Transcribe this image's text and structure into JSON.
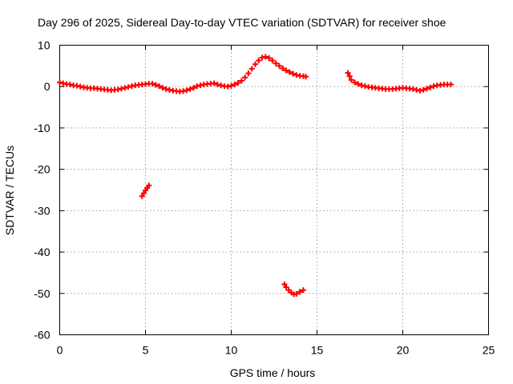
{
  "chart_data": {
    "type": "scatter",
    "title": "Day 296 of 2025, Sidereal Day-to-day VTEC variation (SDTVAR) for receiver shoe",
    "xlabel": "GPS time / hours",
    "ylabel": "SDTVAR / TECUs",
    "xlim": [
      0,
      25
    ],
    "ylim": [
      -60,
      10
    ],
    "xticks": [
      0,
      5,
      10,
      15,
      20,
      25
    ],
    "yticks": [
      10,
      0,
      -10,
      -20,
      -30,
      -40,
      -50,
      -60
    ],
    "xtick_labels": [
      "0",
      "5",
      "10",
      "15",
      "20",
      "25"
    ],
    "ytick_labels": [
      "10",
      "0",
      "-10",
      "-20",
      "-30",
      "-40",
      "-50",
      "-60"
    ],
    "grid": true,
    "marker": "plus",
    "color": "#ff0000",
    "series": [
      {
        "name": "SDTVAR",
        "x": [
          0.0,
          0.2,
          0.4,
          0.6,
          0.8,
          1.0,
          1.2,
          1.4,
          1.6,
          1.8,
          2.0,
          2.2,
          2.4,
          2.6,
          2.8,
          3.0,
          3.2,
          3.4,
          3.6,
          3.8,
          4.0,
          4.2,
          4.4,
          4.6,
          4.8,
          5.0,
          5.2,
          5.4,
          5.6,
          5.8,
          6.0,
          6.2,
          6.4,
          6.6,
          6.8,
          7.0,
          7.2,
          7.4,
          7.6,
          7.8,
          8.0,
          8.2,
          8.4,
          8.6,
          8.8,
          9.0,
          9.2,
          9.4,
          9.6,
          9.8,
          10.0,
          10.2,
          10.4,
          10.6,
          10.8,
          11.0,
          11.2,
          11.4,
          11.6,
          11.8,
          12.0,
          12.2,
          12.4,
          12.6,
          12.8,
          13.0,
          13.2,
          13.4,
          13.6,
          13.8,
          14.0,
          14.2,
          14.35,
          16.8,
          16.9,
          17.0,
          17.2,
          17.4,
          17.6,
          17.8,
          18.0,
          18.2,
          18.4,
          18.6,
          18.8,
          19.0,
          19.2,
          19.4,
          19.6,
          19.8,
          20.0,
          20.2,
          20.4,
          20.6,
          20.8,
          21.0,
          21.2,
          21.4,
          21.6,
          21.8,
          22.0,
          22.2,
          22.4,
          22.6,
          22.8,
          4.8,
          4.9,
          5.0,
          5.1,
          5.2,
          13.1,
          13.2,
          13.35,
          13.5,
          13.65,
          13.8,
          14.0,
          14.2
        ],
        "y": [
          1.0,
          0.8,
          0.6,
          0.5,
          0.3,
          0.2,
          0.0,
          -0.2,
          -0.3,
          -0.4,
          -0.4,
          -0.5,
          -0.6,
          -0.7,
          -0.8,
          -0.9,
          -0.8,
          -0.7,
          -0.5,
          -0.3,
          -0.1,
          0.1,
          0.3,
          0.4,
          0.5,
          0.6,
          0.7,
          0.7,
          0.4,
          0.1,
          -0.3,
          -0.6,
          -0.8,
          -1.0,
          -1.1,
          -1.2,
          -1.1,
          -0.9,
          -0.6,
          -0.3,
          0.1,
          0.3,
          0.5,
          0.6,
          0.7,
          0.8,
          0.5,
          0.3,
          0.1,
          0.0,
          0.2,
          0.5,
          0.9,
          1.4,
          2.2,
          3.2,
          4.3,
          5.4,
          6.3,
          7.0,
          7.2,
          6.9,
          6.3,
          5.6,
          5.0,
          4.4,
          3.9,
          3.5,
          3.1,
          2.8,
          2.6,
          2.5,
          2.4,
          3.3,
          2.5,
          1.6,
          1.0,
          0.6,
          0.3,
          0.1,
          -0.1,
          -0.2,
          -0.3,
          -0.4,
          -0.5,
          -0.6,
          -0.6,
          -0.6,
          -0.5,
          -0.4,
          -0.3,
          -0.4,
          -0.5,
          -0.6,
          -0.8,
          -1.0,
          -0.8,
          -0.5,
          -0.2,
          0.1,
          0.3,
          0.4,
          0.5,
          0.5,
          0.5,
          -26.5,
          -25.8,
          -25.1,
          -24.5,
          -23.9,
          -47.8,
          -48.5,
          -49.2,
          -49.8,
          -50.2,
          -50.1,
          -49.6,
          -49.2
        ]
      }
    ]
  }
}
